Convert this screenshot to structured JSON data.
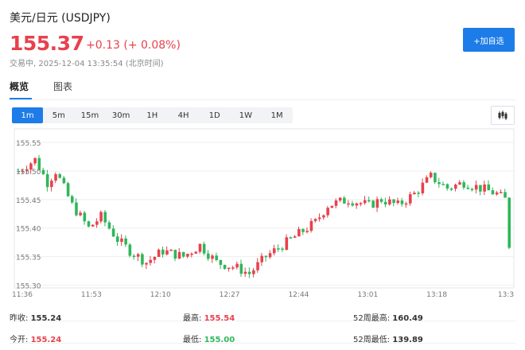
{
  "header": {
    "title": "美元/日元 (USDJPY)",
    "price": "155.37",
    "change": "+0.13 (+ 0.08%)",
    "status": "交易中, 2025-12-04 13:35:54 (北京时间)",
    "add_button": "+加自选"
  },
  "colors": {
    "up": "#e8414d",
    "down": "#2fb65a",
    "accent": "#1e7ce8"
  },
  "tabs": [
    {
      "label": "概览",
      "active": true
    },
    {
      "label": "图表",
      "active": false
    }
  ],
  "periods": [
    "1m",
    "5m",
    "15m",
    "30m",
    "1H",
    "4H",
    "1D",
    "1W",
    "1M"
  ],
  "active_period": "1m",
  "chart_toggle_icon": "candlestick-icon",
  "chart_data": {
    "type": "candlestick",
    "y_ticks": [
      "155.55",
      "155.50",
      "155.45",
      "155.40",
      "155.35",
      "155.30"
    ],
    "y_tick_values": [
      155.55,
      155.5,
      155.45,
      155.4,
      155.35,
      155.3
    ],
    "x_ticks": [
      "11:36",
      "11:53",
      "12:10",
      "12:27",
      "12:44",
      "13:01",
      "13:18",
      "13:3"
    ],
    "ylim": [
      155.295,
      155.56
    ],
    "close_path": [
      [
        0,
        155.5
      ],
      [
        4,
        155.52
      ],
      [
        7,
        155.48
      ],
      [
        9,
        155.5
      ],
      [
        13,
        155.44
      ],
      [
        17,
        155.4
      ],
      [
        20,
        155.42
      ],
      [
        24,
        155.38
      ],
      [
        27,
        155.36
      ],
      [
        31,
        155.34
      ],
      [
        35,
        155.36
      ],
      [
        40,
        155.35
      ],
      [
        44,
        155.37
      ],
      [
        48,
        155.34
      ],
      [
        53,
        155.33
      ],
      [
        56,
        155.32
      ],
      [
        60,
        155.35
      ],
      [
        64,
        155.37
      ],
      [
        68,
        155.39
      ],
      [
        72,
        155.41
      ],
      [
        75,
        155.44
      ],
      [
        80,
        155.45
      ],
      [
        85,
        155.44
      ],
      [
        88,
        155.45
      ],
      [
        92,
        155.44
      ],
      [
        96,
        155.46
      ],
      [
        100,
        155.49
      ],
      [
        104,
        155.47
      ],
      [
        108,
        155.48
      ],
      [
        112,
        155.47
      ],
      [
        116,
        155.46
      ],
      [
        118,
        155.45
      ],
      [
        119,
        155.37
      ]
    ]
  },
  "stats": {
    "rows": [
      [
        {
          "label": "昨收:",
          "value": "155.24",
          "color": "#333333"
        },
        {
          "label": "最高:",
          "value": "155.54",
          "color": "#e8414d"
        },
        {
          "label": "52周最高:",
          "value": "160.49",
          "color": "#333333"
        }
      ],
      [
        {
          "label": "今开:",
          "value": "155.24",
          "color": "#e8414d"
        },
        {
          "label": "最低:",
          "value": "155.00",
          "color": "#2fb65a"
        },
        {
          "label": "52周最低:",
          "value": "139.89",
          "color": "#333333"
        }
      ]
    ]
  }
}
